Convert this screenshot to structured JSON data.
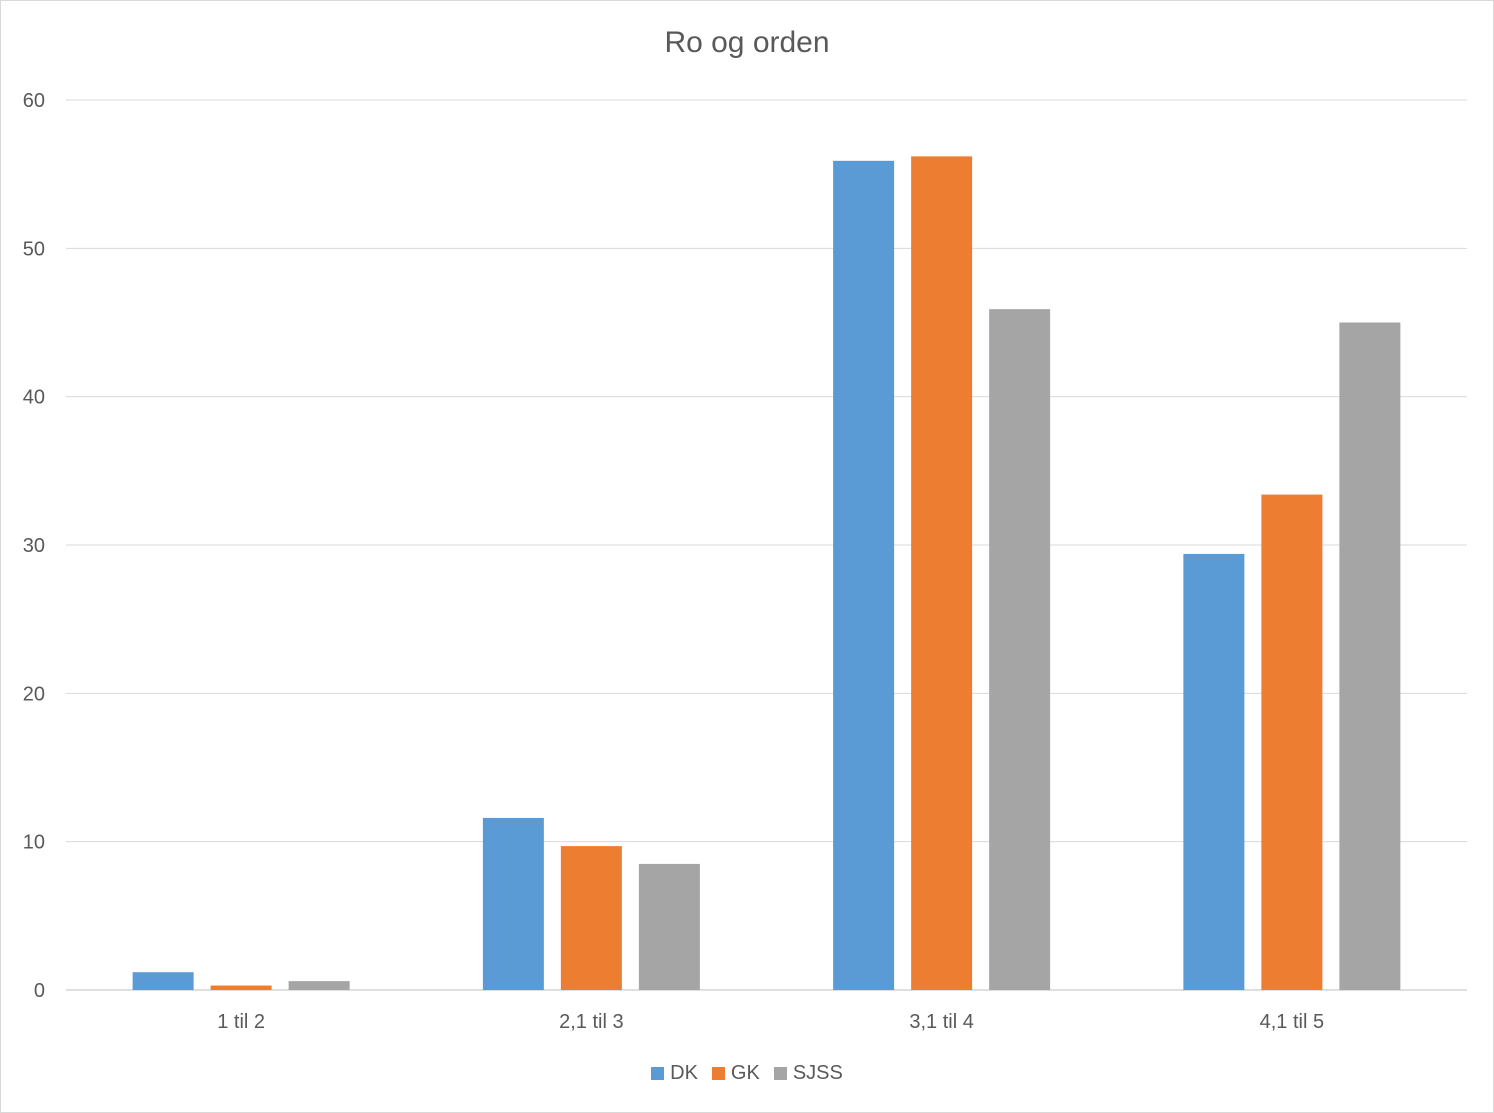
{
  "chart_data": {
    "type": "bar",
    "title": "Ro og orden",
    "xlabel": "",
    "ylabel": "",
    "categories": [
      "1 til 2",
      "2,1 til 3",
      "3,1 til 4",
      "4,1 til 5"
    ],
    "series": [
      {
        "name": "DK",
        "color": "#5b9bd5",
        "values": [
          1.2,
          11.6,
          55.9,
          29.4
        ]
      },
      {
        "name": "GK",
        "color": "#ed7d31",
        "values": [
          0.3,
          9.7,
          56.2,
          33.4
        ]
      },
      {
        "name": "SJSS",
        "color": "#a5a5a5",
        "values": [
          0.6,
          8.5,
          45.9,
          45.0
        ]
      }
    ],
    "ylim": [
      0,
      60
    ],
    "yticks": [
      "0",
      "10",
      "20",
      "30",
      "40",
      "50",
      "60"
    ],
    "grid": true,
    "legend_position": "bottom"
  }
}
